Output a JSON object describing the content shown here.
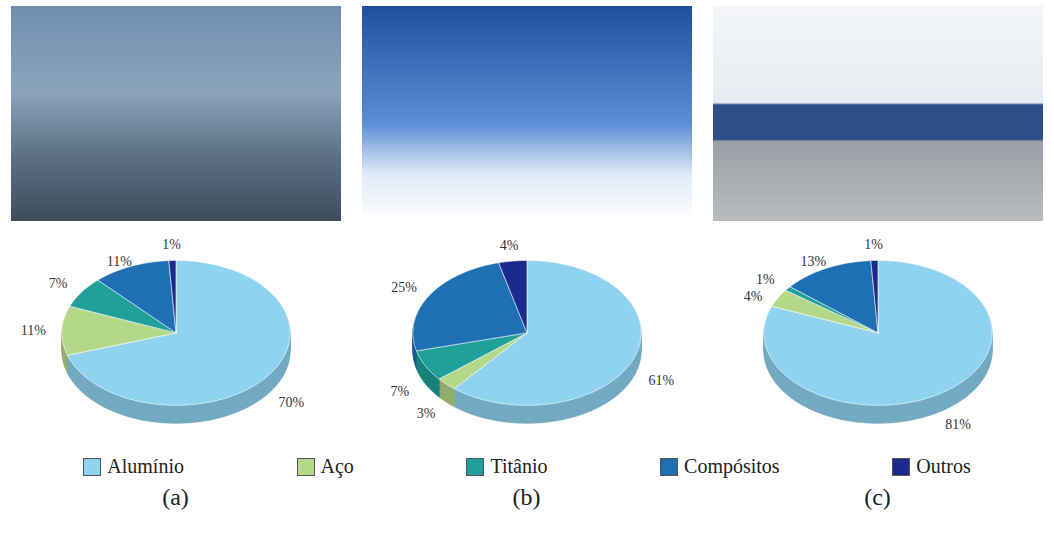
{
  "chart_data": [
    {
      "type": "pie",
      "title": "(a)",
      "categories": [
        "Alumínio",
        "Aço",
        "Titânio",
        "Compósitos",
        "Outros"
      ],
      "values": [
        70,
        11,
        7,
        11,
        1
      ],
      "value_labels": [
        "70%",
        "11%",
        "7%",
        "11%",
        "1%"
      ],
      "colors": [
        "#8fd3f0",
        "#b4d88a",
        "#1fa09a",
        "#1f6fb5",
        "#1b2a8c"
      ],
      "data_labels": true,
      "legend": "bottom"
    },
    {
      "type": "pie",
      "title": "(b)",
      "categories": [
        "Alumínio",
        "Aço",
        "Titânio",
        "Compósitos",
        "Outros"
      ],
      "values": [
        61,
        3,
        7,
        25,
        4
      ],
      "value_labels": [
        "61%",
        "3%",
        "7%",
        "25%",
        "4%"
      ],
      "colors": [
        "#8fd3f0",
        "#b4d88a",
        "#1fa09a",
        "#1f6fb5",
        "#1b2a8c"
      ],
      "data_labels": true,
      "legend": "bottom"
    },
    {
      "type": "pie",
      "title": "(c)",
      "categories": [
        "Alumínio",
        "Aço",
        "Titânio",
        "Compósitos",
        "Outros"
      ],
      "values": [
        81,
        4,
        1,
        13,
        1
      ],
      "value_labels": [
        "81%",
        "4%",
        "1%",
        "13%",
        "1%"
      ],
      "colors": [
        "#8fd3f0",
        "#b4d88a",
        "#1fa09a",
        "#1f6fb5",
        "#1b2a8c"
      ],
      "data_labels": true,
      "legend": "bottom"
    }
  ]
}
